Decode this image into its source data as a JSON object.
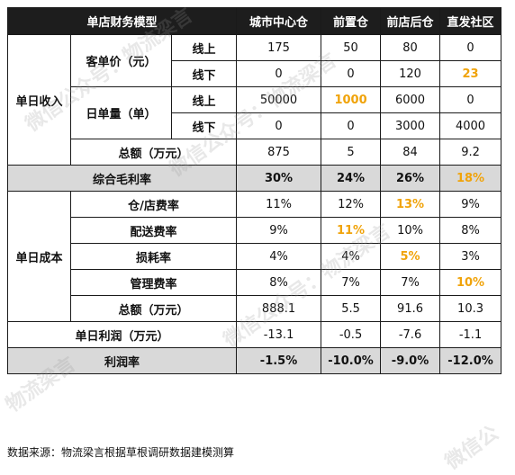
{
  "table": {
    "headers": [
      "单店财务模型",
      "城市中心仓",
      "前置仓",
      "前店后仓",
      "直发社区"
    ],
    "groups": {
      "daily_income": "单日收入",
      "daily_cost": "单日成本"
    },
    "income": {
      "order_value_label": "客单价（元）",
      "order_count_label": "日单量（单）",
      "online": "线上",
      "offline": "线下",
      "order_value_online": [
        "175",
        "50",
        "80",
        "0"
      ],
      "order_value_offline": [
        "0",
        "0",
        "120",
        "23"
      ],
      "order_count_online": [
        "50000",
        "1000",
        "6000",
        "0"
      ],
      "order_count_offline": [
        "0",
        "0",
        "3000",
        "4000"
      ],
      "total_label": "总额（万元）",
      "total": [
        "875",
        "5",
        "84",
        "9.2"
      ]
    },
    "gross_margin": {
      "label": "综合毛利率",
      "values": [
        "30%",
        "24%",
        "26%",
        "18%"
      ]
    },
    "cost": {
      "rows": [
        {
          "label": "仓/店费率",
          "values": [
            "11%",
            "12%",
            "13%",
            "9%"
          ]
        },
        {
          "label": "配送费率",
          "values": [
            "9%",
            "11%",
            "10%",
            "8%"
          ]
        },
        {
          "label": "损耗率",
          "values": [
            "4%",
            "4%",
            "5%",
            "3%"
          ]
        },
        {
          "label": "管理费率",
          "values": [
            "8%",
            "7%",
            "7%",
            "10%"
          ]
        }
      ],
      "total_label": "总额（万元）",
      "total": [
        "888.1",
        "5.5",
        "91.6",
        "10.3"
      ]
    },
    "daily_profit": {
      "label": "单日利润（万元）",
      "values": [
        "-13.1",
        "-0.5",
        "-7.6",
        "-1.1"
      ]
    },
    "profit_rate": {
      "label": "利润率",
      "values": [
        "-1.5%",
        "-10.0%",
        "-9.0%",
        "-12.0%"
      ]
    },
    "highlight_color": "#f0a30a"
  },
  "source_note": "数据来源：物流梁言根据草根调研数据建模测算",
  "watermark": [
    "微信公众号：物流梁言",
    "微信公众号：物流梁言",
    "微信公众号：物流梁言",
    "物流梁言",
    "微信公"
  ]
}
